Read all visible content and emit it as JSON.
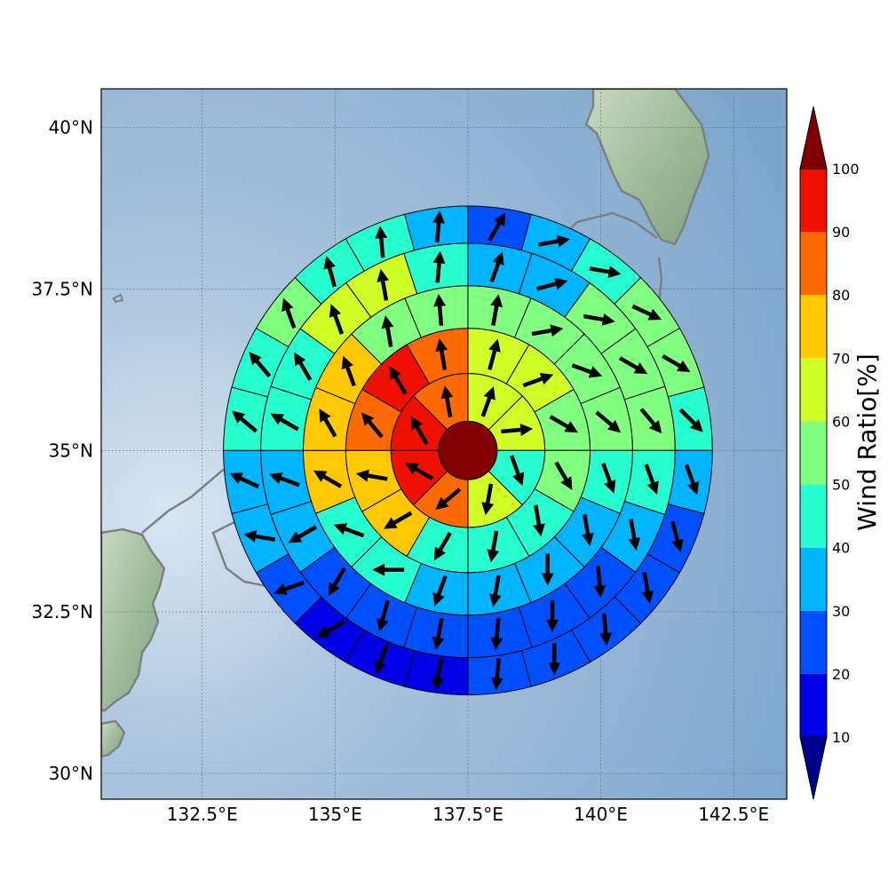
{
  "map": {
    "lat_ticks": [
      "40°N",
      "37.5°N",
      "35°N",
      "32.5°N",
      "30°N"
    ],
    "lon_ticks": [
      "132.5°E",
      "135°E",
      "137.5°E",
      "140°E",
      "142.5°E"
    ],
    "lat_tick_values": [
      40,
      37.5,
      35,
      32.5,
      30
    ],
    "lon_tick_values": [
      132.5,
      135,
      137.5,
      140,
      142.5
    ],
    "lat_range": [
      29.6,
      40.6
    ],
    "lon_range": [
      130.6,
      143.5
    ],
    "center": {
      "lon": 137.5,
      "lat": 35.0
    },
    "gridlines": "dotted",
    "coastline_color": "#808080",
    "ocean_color": "#8fb2d4"
  },
  "rings": {
    "center_value": 100,
    "radii_degrees": [
      0.55,
      1.45,
      2.3,
      3.1,
      3.9,
      4.6
    ],
    "rings": [
      {
        "segments": 8,
        "start_bearing": 0,
        "values": [
          65,
          65,
          45,
          60,
          80,
          95,
          95,
          85
        ],
        "arrows": [
          20,
          85,
          160,
          190,
          230,
          300,
          330,
          350
        ]
      },
      {
        "segments": 12,
        "start_bearing": 0,
        "values": [
          65,
          65,
          55,
          55,
          40,
          42,
          42,
          75,
          75,
          85,
          95,
          85
        ],
        "arrows": [
          15,
          70,
          120,
          150,
          170,
          190,
          210,
          240,
          280,
          320,
          330,
          350
        ]
      },
      {
        "segments": 16,
        "start_bearing": 0,
        "values": [
          55,
          55,
          55,
          55,
          45,
          35,
          35,
          35,
          35,
          45,
          45,
          75,
          75,
          75,
          55,
          55
        ],
        "arrows": [
          10,
          80,
          110,
          130,
          160,
          170,
          180,
          190,
          200,
          270,
          290,
          300,
          330,
          340,
          350,
          355
        ]
      },
      {
        "segments": 20,
        "start_bearing": 0,
        "values": [
          35,
          35,
          55,
          55,
          55,
          45,
          35,
          25,
          25,
          25,
          25,
          25,
          25,
          35,
          35,
          45,
          45,
          65,
          65,
          45
        ],
        "arrows": [
          20,
          75,
          100,
          120,
          140,
          160,
          170,
          175,
          180,
          185,
          190,
          195,
          210,
          240,
          290,
          300,
          330,
          340,
          350,
          5
        ]
      },
      {
        "segments": 24,
        "start_bearing": 0,
        "values": [
          25,
          35,
          45,
          55,
          55,
          45,
          35,
          25,
          25,
          25,
          25,
          25,
          15,
          15,
          15,
          25,
          35,
          35,
          45,
          45,
          55,
          45,
          45,
          35
        ],
        "arrows": [
          30,
          80,
          100,
          115,
          120,
          135,
          160,
          165,
          170,
          175,
          180,
          185,
          190,
          200,
          240,
          250,
          280,
          295,
          310,
          320,
          340,
          345,
          355,
          5
        ]
      }
    ]
  },
  "colorbar": {
    "label": "Wind Ratio[%]",
    "ticks": [
      "10",
      "20",
      "30",
      "40",
      "50",
      "60",
      "70",
      "80",
      "90",
      "100"
    ],
    "levels": [
      10,
      20,
      30,
      40,
      50,
      60,
      70,
      80,
      90,
      100
    ],
    "under_color": "#00008f",
    "over_color": "#800000",
    "colors": [
      "#0000e6",
      "#0050ff",
      "#00b4ff",
      "#28ffd0",
      "#80ff80",
      "#d0ff28",
      "#ffc800",
      "#ff6a00",
      "#f01000"
    ]
  }
}
